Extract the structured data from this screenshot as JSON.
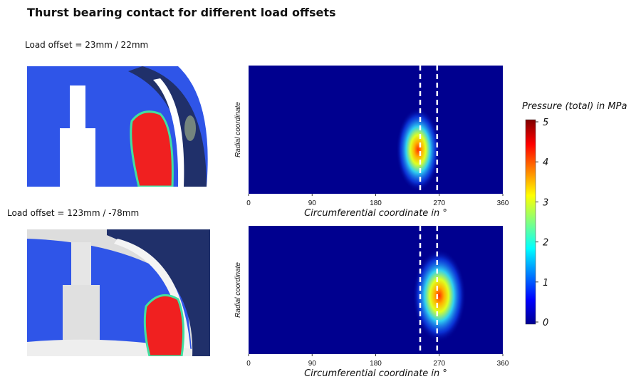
{
  "title": "Thurst bearing contact for different load offsets",
  "panels": [
    {
      "label": "Load offset = 23mm / 22mm",
      "heatmap": {
        "xlim": [
          0,
          360
        ],
        "xticks": [
          0,
          90,
          180,
          270,
          360
        ],
        "xlabel": "Circumferential coordinate in °",
        "ylabel": "Radial coordinate",
        "ref_lines": [
          243,
          267
        ],
        "peak_angle": 240
      }
    },
    {
      "label": "Load offset = 123mm / -78mm",
      "heatmap": {
        "xlim": [
          0,
          360
        ],
        "xticks": [
          0,
          90,
          180,
          270,
          360
        ],
        "xlabel": "Circumferential coordinate in °",
        "ylabel": "Radial coordinate",
        "ref_lines": [
          243,
          267
        ],
        "peak_angle": 270
      }
    }
  ],
  "colorbar": {
    "title": "Pressure (total) in MPa",
    "lim": [
      0,
      5
    ],
    "ticks": [
      0,
      1,
      2,
      3,
      4,
      5
    ]
  }
}
